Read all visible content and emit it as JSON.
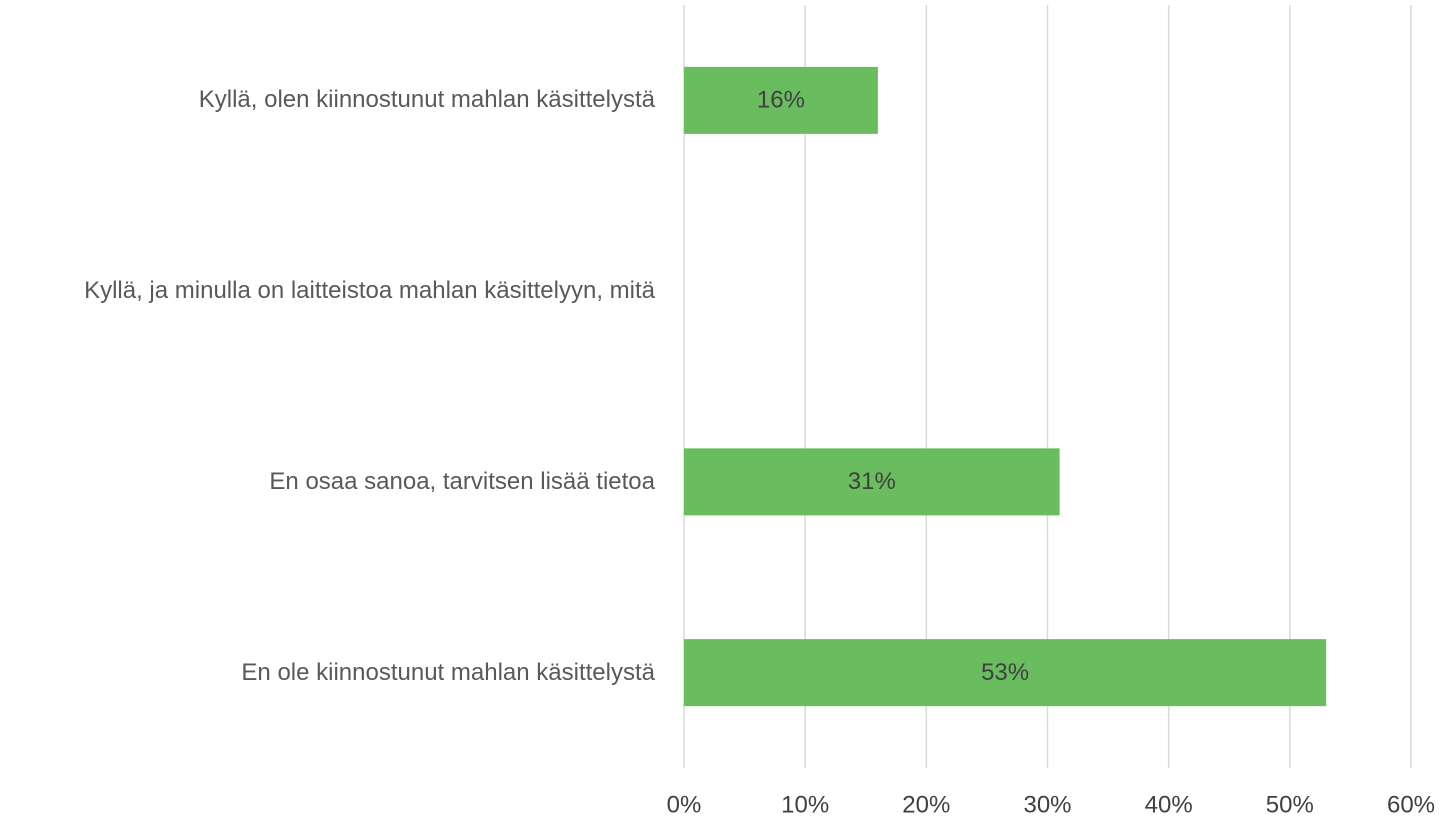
{
  "chart_data": {
    "type": "bar",
    "orientation": "horizontal",
    "categories": [
      "Kyllä, olen kiinnostunut mahlan käsittelystä",
      "Kyllä, ja minulla on laitteistoa mahlan käsittelyyn, mitä",
      "En osaa sanoa, tarvitsen lisää tietoa",
      "En ole kiinnostunut mahlan käsittelystä"
    ],
    "values": [
      16,
      null,
      31,
      53
    ],
    "value_labels": [
      "16%",
      null,
      "31%",
      "53%"
    ],
    "color": "#6abd5f",
    "xlim": [
      0,
      60
    ],
    "xticks": [
      {
        "value": 0,
        "label": "0%"
      },
      {
        "value": 10,
        "label": "10%"
      },
      {
        "value": 20,
        "label": "20%"
      },
      {
        "value": 30,
        "label": "30%"
      },
      {
        "value": 40,
        "label": "40%"
      },
      {
        "value": 50,
        "label": "50%"
      },
      {
        "value": 60,
        "label": "60%"
      }
    ],
    "grid": true
  }
}
